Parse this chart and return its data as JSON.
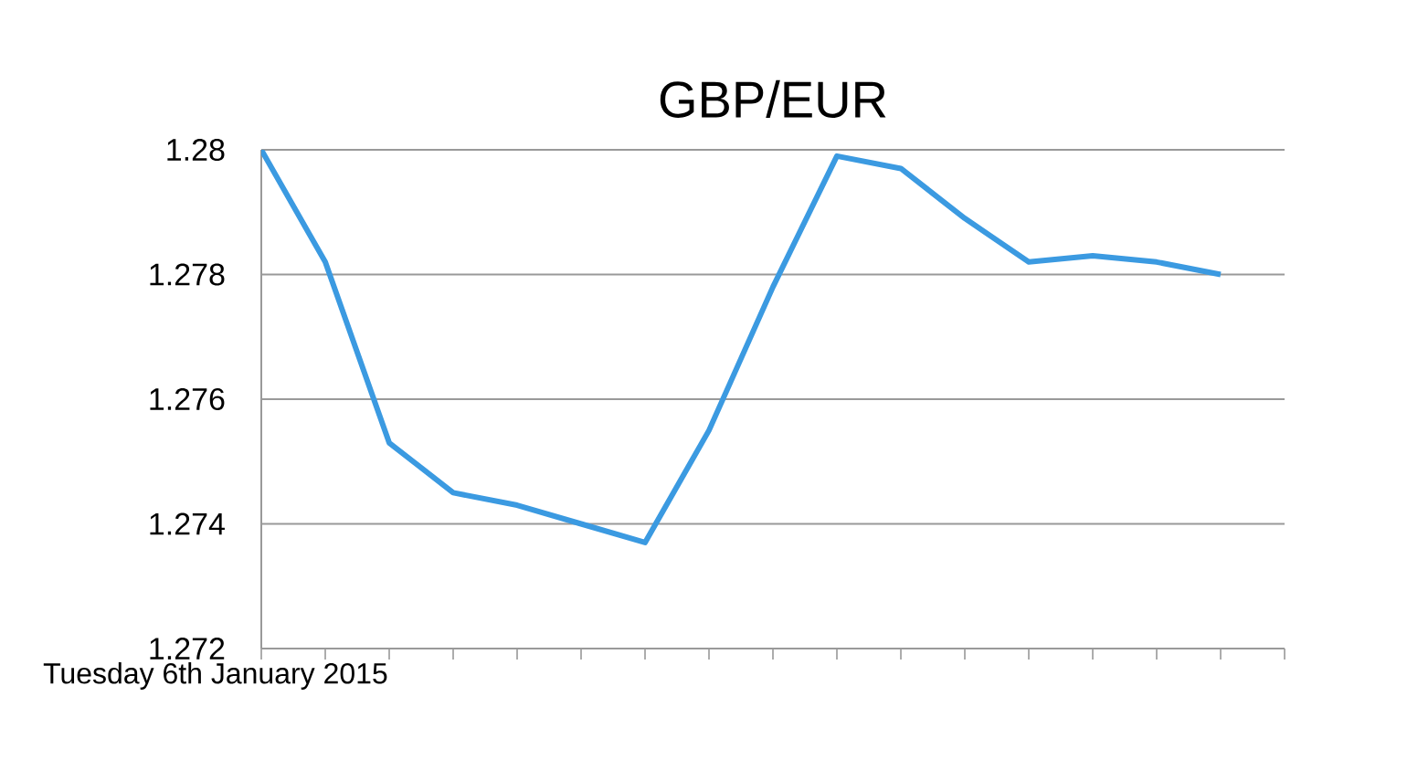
{
  "chart_data": {
    "type": "line",
    "title": "GBP/EUR",
    "xlabel": "Tuesday 6th January 2015",
    "categories": [
      null,
      null,
      null,
      null,
      null,
      null,
      null,
      null,
      null,
      null,
      null,
      null,
      null,
      null,
      null,
      null,
      null
    ],
    "series": [
      {
        "color": "#3b9ae1",
        "values": [
          1.28,
          1.2782,
          1.2753,
          1.2745,
          1.2743,
          1.274,
          1.2737,
          1.2755,
          1.2778,
          1.2799,
          1.2797,
          1.2789,
          1.2782,
          1.2783,
          1.2782,
          1.278,
          null
        ]
      }
    ],
    "ylim": [
      1.272,
      1.28
    ],
    "yticks": [
      1.272,
      1.274,
      1.276,
      1.278,
      1.28
    ],
    "grid": "y",
    "tick_labels": "y"
  }
}
